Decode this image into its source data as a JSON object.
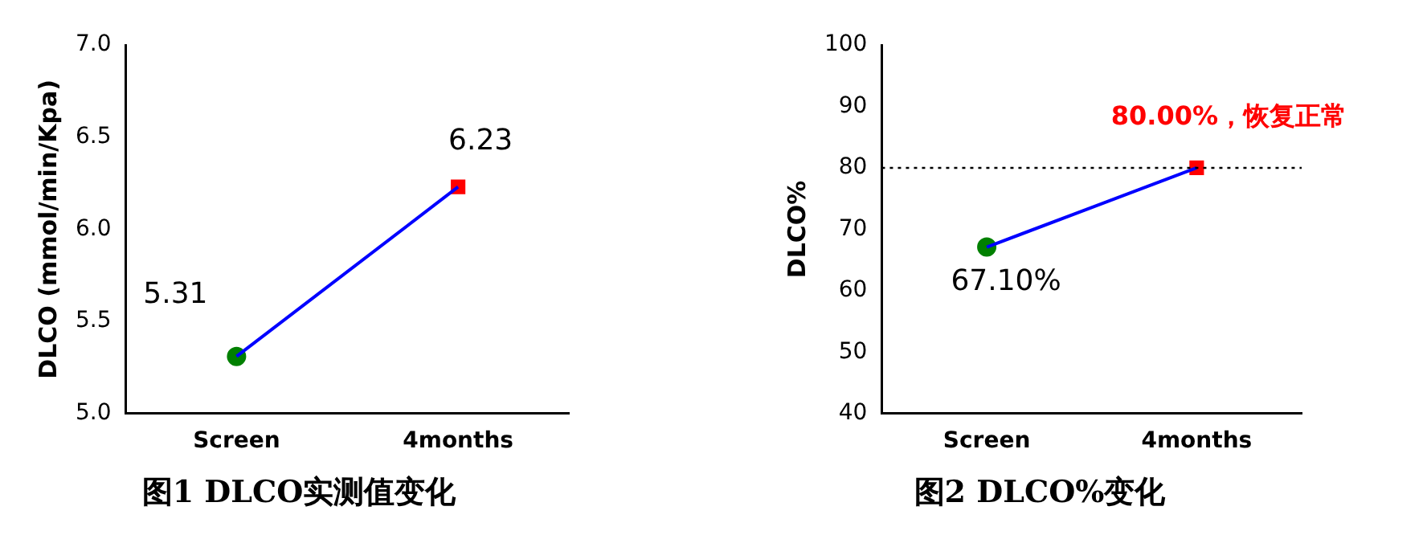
{
  "chart_data": [
    {
      "type": "line",
      "title": "图1 DLCO实测值变化",
      "ylabel": "DLCO (mmol/min/Kpa)",
      "categories": [
        "Screen",
        "4months"
      ],
      "ylim": [
        5.0,
        7.0
      ],
      "yticks": [
        {
          "value": 5,
          "label": "5.0"
        },
        {
          "value": 5.5,
          "label": "5.5"
        },
        {
          "value": 6,
          "label": "6.0"
        },
        {
          "value": 6.5,
          "label": "6.5"
        },
        {
          "value": 7,
          "label": "7.0"
        }
      ],
      "grid": false,
      "legend": false,
      "series": [
        {
          "type": "line",
          "color": "#0000ff",
          "values": [
            5.31,
            6.23
          ],
          "marker": "none"
        },
        {
          "type": "scatter",
          "color": "#008000",
          "x": [
            "Screen"
          ],
          "values": [
            5.31
          ],
          "marker": "circle",
          "value_labels": [
            "5.31"
          ]
        },
        {
          "type": "scatter",
          "color": "#ff0000",
          "x": [
            "4months"
          ],
          "values": [
            6.23
          ],
          "marker": "square",
          "value_labels": [
            "6.23"
          ]
        }
      ]
    },
    {
      "type": "line",
      "title": "图2 DLCO%变化",
      "ylabel": "DLCO%",
      "categories": [
        "Screen",
        "4months"
      ],
      "ylim": [
        40,
        100
      ],
      "yticks": [
        40,
        50,
        60,
        70,
        80,
        90,
        100
      ],
      "grid": false,
      "legend": false,
      "ref_lines": [
        {
          "axis": "y",
          "value": 80,
          "color": "#000000",
          "line_style": "dotted"
        }
      ],
      "annotations": [
        {
          "text": "80.00%，恢复正常",
          "x": "4months",
          "y": 80
        }
      ],
      "series": [
        {
          "type": "line",
          "color": "#0000ff",
          "values": [
            67.1,
            80
          ],
          "marker": "none"
        },
        {
          "type": "scatter",
          "color": "#008000",
          "x": [
            "Screen"
          ],
          "values": [
            67.1
          ],
          "marker": "circle",
          "value_labels": [
            "67.10%"
          ]
        },
        {
          "type": "scatter",
          "color": "#ff0000",
          "x": [
            "4months"
          ],
          "values": [
            80
          ],
          "marker": "square",
          "value_labels": [
            null
          ]
        }
      ]
    }
  ]
}
